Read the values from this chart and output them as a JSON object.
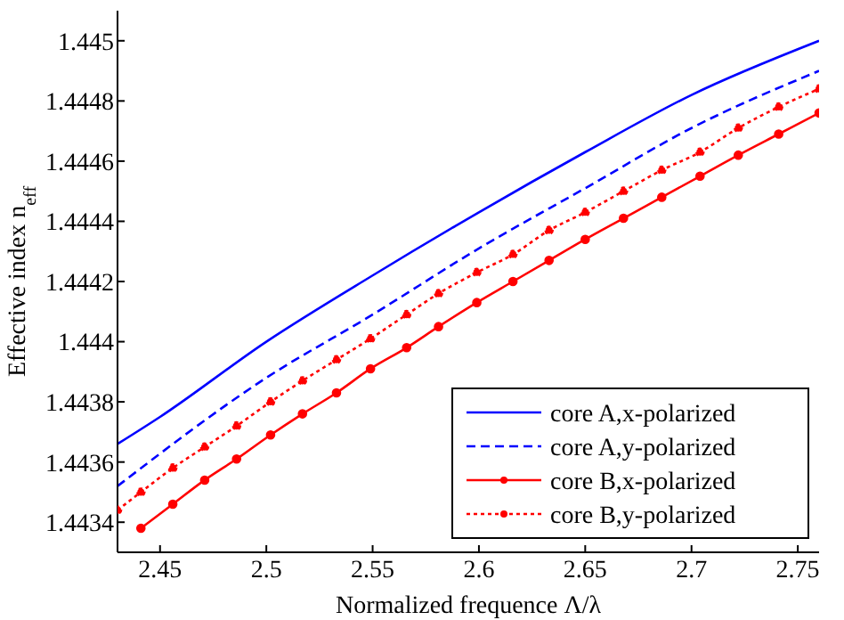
{
  "chart_data": {
    "type": "line",
    "xlabel": "Normalized frequence Λ/λ",
    "ylabel": "Effective index n$_{eff}$",
    "xlim": [
      2.43,
      2.76
    ],
    "xticks": [
      2.45,
      2.5,
      2.55,
      2.6,
      2.65,
      2.7,
      2.75
    ],
    "ylim": [
      1.4433,
      1.4451
    ],
    "yticks": [
      1.4434,
      1.4436,
      1.4438,
      1.444,
      1.4442,
      1.4444,
      1.4446,
      1.4448,
      1.445
    ],
    "legend": "bottom right",
    "series": [
      {
        "name": "core A,x-polarized",
        "color": "#0000ff",
        "line_style": "solid",
        "marker": "none",
        "x": [
          2.43,
          2.45,
          2.5,
          2.55,
          2.6,
          2.65,
          2.7,
          2.76
        ],
        "values": [
          1.44366,
          1.44375,
          1.444,
          1.44422,
          1.44443,
          1.44463,
          1.44482,
          1.445
        ]
      },
      {
        "name": "core A,y-polarized",
        "color": "#0000ff",
        "line_style": "dashed",
        "marker": "none",
        "x": [
          2.43,
          2.5,
          2.55,
          2.6,
          2.65,
          2.7,
          2.76
        ],
        "values": [
          1.44352,
          1.44388,
          1.44409,
          1.44431,
          1.44451,
          1.44471,
          1.4449
        ]
      },
      {
        "name": "core B,x-polarized",
        "color": "#ff0000",
        "line_style": "solid",
        "marker": "circle",
        "x": [
          2.441,
          2.456,
          2.471,
          2.486,
          2.502,
          2.517,
          2.533,
          2.549,
          2.566,
          2.581,
          2.599,
          2.616,
          2.633,
          2.65,
          2.668,
          2.686,
          2.704,
          2.722,
          2.741,
          2.76
        ],
        "values": [
          1.44338,
          1.44346,
          1.44354,
          1.44361,
          1.44369,
          1.44376,
          1.44383,
          1.44391,
          1.44398,
          1.44405,
          1.44413,
          1.4442,
          1.44427,
          1.44434,
          1.44441,
          1.44448,
          1.44455,
          1.44462,
          1.44469,
          1.44476
        ]
      },
      {
        "name": "core B,y-polarized",
        "color": "#ff0000",
        "line_style": "dotted",
        "marker": "circle",
        "x": [
          2.43,
          2.441,
          2.456,
          2.471,
          2.486,
          2.502,
          2.517,
          2.533,
          2.549,
          2.566,
          2.581,
          2.599,
          2.616,
          2.633,
          2.65,
          2.668,
          2.686,
          2.704,
          2.722,
          2.741,
          2.76
        ],
        "values": [
          1.44344,
          1.4435,
          1.44358,
          1.44365,
          1.44372,
          1.4438,
          1.44387,
          1.44394,
          1.44401,
          1.44409,
          1.44416,
          1.44423,
          1.44429,
          1.44437,
          1.44443,
          1.4445,
          1.44457,
          1.44463,
          1.44471,
          1.44478,
          1.44484
        ]
      }
    ]
  }
}
